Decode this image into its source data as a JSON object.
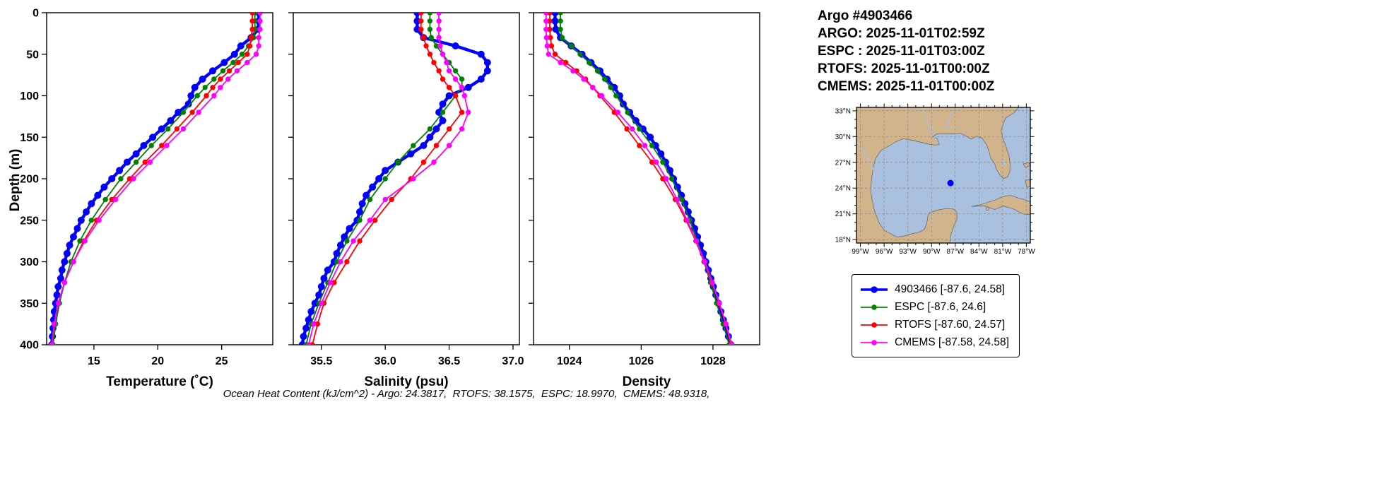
{
  "footnote": "Ocean Heat Content (kJ/cm^2) - Argo: 24.3817,  RTOFS: 38.1575,  ESPC: 18.9970,  CMEMS: 48.9318,",
  "header": {
    "lines": [
      "Argo #4903466",
      "ARGO: 2025-11-01T02:59Z",
      "ESPC : 2025-11-01T03:00Z",
      "RTOFS: 2025-11-01T00:00Z",
      "CMEMS: 2025-11-01T00:00Z"
    ]
  },
  "legend": {
    "items": [
      {
        "id": "argo",
        "label": "4903466 [-87.6, 24.58]",
        "color": "#0000FF"
      },
      {
        "id": "espc",
        "label": "ESPC [-87.6, 24.6]",
        "color": "#008000"
      },
      {
        "id": "rtofs",
        "label": "RTOFS [-87.60, 24.57]",
        "color": "#FF0000"
      },
      {
        "id": "cmems",
        "label": "CMEMS [-87.58, 24.58]",
        "color": "#FF00FF"
      }
    ]
  },
  "map": {
    "extent": {
      "lon_west": 99.5,
      "lon_east": 77.5,
      "lat_north": 33.4,
      "lat_south": 17.6
    },
    "lon_ticks": [
      {
        "value": 99,
        "label": "99°W"
      },
      {
        "value": 96,
        "label": "96°W"
      },
      {
        "value": 93,
        "label": "93°W"
      },
      {
        "value": 90,
        "label": "90°W"
      },
      {
        "value": 87,
        "label": "87°W"
      },
      {
        "value": 84,
        "label": "84°W"
      },
      {
        "value": 81,
        "label": "81°W"
      },
      {
        "value": 78,
        "label": "78°W"
      }
    ],
    "lat_ticks": [
      {
        "value": 33,
        "label": "33°N"
      },
      {
        "value": 30,
        "label": "30°N"
      },
      {
        "value": 27,
        "label": "27°N"
      },
      {
        "value": 24,
        "label": "24°N"
      },
      {
        "value": 21,
        "label": "21°N"
      },
      {
        "value": 18,
        "label": "18°N"
      }
    ],
    "float_marker": {
      "lon_w": 87.6,
      "lat_n": 24.58,
      "color": "#0000FF"
    },
    "colors": {
      "water": "#A9C1DE",
      "land": "#D2B48C",
      "river": "#A9C1DE"
    }
  },
  "chart_data": {
    "type": "line",
    "ylabel": "Depth (m)",
    "ylim": [
      0,
      400
    ],
    "y_inverted": true,
    "yticks": [
      0,
      50,
      100,
      150,
      200,
      250,
      300,
      350,
      400
    ],
    "depth_grids": {
      "argo": [
        0,
        10,
        20,
        30,
        40,
        50,
        60,
        70,
        80,
        90,
        100,
        110,
        120,
        130,
        140,
        150,
        160,
        170,
        180,
        190,
        200,
        210,
        220,
        230,
        240,
        250,
        260,
        270,
        280,
        290,
        300,
        310,
        320,
        330,
        340,
        350,
        360,
        370,
        380,
        390,
        400
      ],
      "model": [
        0,
        10,
        20,
        30,
        40,
        50,
        60,
        70,
        80,
        90,
        100,
        120,
        140,
        160,
        180,
        200,
        225,
        250,
        275,
        300,
        325,
        350,
        375,
        400
      ]
    },
    "series_meta": [
      {
        "id": "argo",
        "name": "4903466",
        "color": "#0000FF",
        "linewidth": 4.4,
        "markersize": 5.0
      },
      {
        "id": "espc",
        "name": "ESPC",
        "color": "#008000",
        "linewidth": 1.8,
        "markersize": 3.7
      },
      {
        "id": "rtofs",
        "name": "RTOFS",
        "color": "#FF0000",
        "linewidth": 1.8,
        "markersize": 3.7
      },
      {
        "id": "cmems",
        "name": "CMEMS",
        "color": "#FF00FF",
        "linewidth": 1.8,
        "markersize": 3.7
      }
    ],
    "panels": [
      {
        "xlabel": "Temperature (˚C)",
        "xlim": [
          11.3,
          29.0
        ],
        "show_ylabels": true,
        "xticks": [
          {
            "value": 15,
            "label": "15"
          },
          {
            "value": 20,
            "label": "20"
          },
          {
            "value": 25,
            "label": "25"
          }
        ],
        "series": [
          {
            "id": "argo",
            "grid": "argo",
            "values": [
              27.9,
              27.9,
              27.85,
              27.3,
              26.5,
              26.0,
              25.2,
              24.3,
              23.5,
              22.9,
              22.6,
              22.4,
              21.6,
              21.0,
              20.3,
              19.6,
              18.9,
              18.3,
              17.6,
              17.0,
              16.4,
              15.8,
              15.3,
              14.8,
              14.4,
              14.0,
              13.7,
              13.4,
              13.1,
              12.9,
              12.7,
              12.5,
              12.4,
              12.2,
              12.1,
              12.0,
              11.9,
              11.85,
              11.8,
              11.75,
              11.7
            ]
          },
          {
            "id": "espc",
            "grid": "model",
            "values": [
              27.6,
              27.6,
              27.6,
              27.5,
              27.1,
              26.6,
              25.9,
              25.1,
              24.4,
              23.7,
              23.1,
              22.0,
              20.8,
              19.5,
              18.3,
              17.1,
              15.9,
              14.8,
              13.9,
              13.2,
              12.7,
              12.3,
              12.0,
              11.8
            ]
          },
          {
            "id": "rtofs",
            "grid": "model",
            "values": [
              27.4,
              27.4,
              27.4,
              27.3,
              27.2,
              27.0,
              26.3,
              25.6,
              24.9,
              24.3,
              23.8,
              22.7,
              21.5,
              20.3,
              19.0,
              17.8,
              16.4,
              15.2,
              14.2,
              13.4,
              12.7,
              12.2,
              11.9,
              11.7
            ]
          },
          {
            "id": "cmems",
            "grid": "model",
            "values": [
              28.0,
              28.0,
              28.0,
              27.9,
              27.9,
              27.7,
              27.0,
              26.2,
              25.5,
              24.9,
              24.4,
              23.2,
              22.0,
              20.7,
              19.4,
              18.1,
              16.7,
              15.4,
              14.3,
              13.4,
              12.7,
              12.2,
              11.9,
              11.7
            ]
          }
        ]
      },
      {
        "xlabel": "Salinity (psu)",
        "xlim": [
          35.28,
          37.05
        ],
        "show_ylabels": false,
        "xticks": [
          {
            "value": 35.5,
            "label": "35.5"
          },
          {
            "value": 36.0,
            "label": "36.0"
          },
          {
            "value": 36.5,
            "label": "36.5"
          },
          {
            "value": 37.0,
            "label": "37.0"
          }
        ],
        "series": [
          {
            "id": "argo",
            "grid": "argo",
            "values": [
              36.25,
              36.25,
              36.25,
              36.3,
              36.55,
              36.75,
              36.8,
              36.8,
              36.75,
              36.65,
              36.5,
              36.45,
              36.42,
              36.45,
              36.4,
              36.35,
              36.3,
              36.2,
              36.1,
              36.0,
              35.95,
              35.9,
              35.85,
              35.82,
              35.8,
              35.78,
              35.72,
              35.68,
              35.65,
              35.62,
              35.6,
              35.55,
              35.52,
              35.5,
              35.48,
              35.45,
              35.42,
              35.4,
              35.38,
              35.36,
              35.35
            ]
          },
          {
            "id": "espc",
            "grid": "model",
            "values": [
              36.35,
              36.35,
              36.35,
              36.36,
              36.4,
              36.45,
              36.5,
              36.55,
              36.6,
              36.6,
              36.55,
              36.45,
              36.35,
              36.22,
              36.1,
              36.0,
              35.88,
              35.8,
              35.7,
              35.62,
              35.55,
              35.48,
              35.42,
              35.38
            ]
          },
          {
            "id": "rtofs",
            "grid": "model",
            "values": [
              36.28,
              36.28,
              36.28,
              36.3,
              36.32,
              36.35,
              36.38,
              36.42,
              36.45,
              36.5,
              36.55,
              36.6,
              36.5,
              36.4,
              36.3,
              36.2,
              36.05,
              35.92,
              35.8,
              35.7,
              35.6,
              35.52,
              35.47,
              35.43
            ]
          },
          {
            "id": "cmems",
            "grid": "model",
            "values": [
              36.42,
              36.42,
              36.42,
              36.42,
              36.43,
              36.45,
              36.48,
              36.5,
              36.55,
              36.6,
              36.62,
              36.65,
              36.6,
              36.5,
              36.38,
              36.22,
              36.0,
              35.88,
              35.75,
              35.65,
              35.57,
              35.5,
              35.44,
              35.4
            ]
          }
        ]
      },
      {
        "xlabel": "Density",
        "xlim": [
          1023.0,
          1029.3
        ],
        "show_ylabels": false,
        "xticks": [
          {
            "value": 1024,
            "label": "1024"
          },
          {
            "value": 1026,
            "label": "1026"
          },
          {
            "value": 1028,
            "label": "1028"
          }
        ],
        "series": [
          {
            "id": "argo",
            "grid": "argo",
            "values": [
              1023.6,
              1023.6,
              1023.62,
              1023.75,
              1024.05,
              1024.35,
              1024.6,
              1024.85,
              1025.05,
              1025.25,
              1025.4,
              1025.5,
              1025.68,
              1025.85,
              1026.05,
              1026.25,
              1026.4,
              1026.55,
              1026.68,
              1026.8,
              1026.9,
              1027.01,
              1027.12,
              1027.22,
              1027.31,
              1027.4,
              1027.49,
              1027.57,
              1027.65,
              1027.73,
              1027.8,
              1027.87,
              1027.94,
              1028.01,
              1028.08,
              1028.15,
              1028.22,
              1028.29,
              1028.36,
              1028.43,
              1028.5
            ]
          },
          {
            "id": "espc",
            "grid": "model",
            "values": [
              1023.75,
              1023.75,
              1023.75,
              1023.8,
              1024.05,
              1024.3,
              1024.55,
              1024.78,
              1024.98,
              1025.15,
              1025.3,
              1025.62,
              1025.95,
              1026.3,
              1026.6,
              1026.85,
              1027.12,
              1027.35,
              1027.56,
              1027.75,
              1027.93,
              1028.1,
              1028.28,
              1028.45
            ]
          },
          {
            "id": "rtofs",
            "grid": "model",
            "values": [
              1023.45,
              1023.45,
              1023.45,
              1023.47,
              1023.5,
              1023.6,
              1023.9,
              1024.2,
              1024.45,
              1024.65,
              1024.85,
              1025.25,
              1025.6,
              1025.95,
              1026.3,
              1026.6,
              1026.95,
              1027.25,
              1027.52,
              1027.75,
              1027.97,
              1028.17,
              1028.35,
              1028.5
            ]
          },
          {
            "id": "cmems",
            "grid": "model",
            "values": [
              1023.35,
              1023.35,
              1023.35,
              1023.36,
              1023.38,
              1023.42,
              1023.75,
              1024.1,
              1024.4,
              1024.65,
              1024.9,
              1025.35,
              1025.75,
              1026.1,
              1026.42,
              1026.7,
              1027.0,
              1027.28,
              1027.53,
              1027.77,
              1027.98,
              1028.18,
              1028.36,
              1028.52
            ]
          }
        ]
      }
    ]
  }
}
